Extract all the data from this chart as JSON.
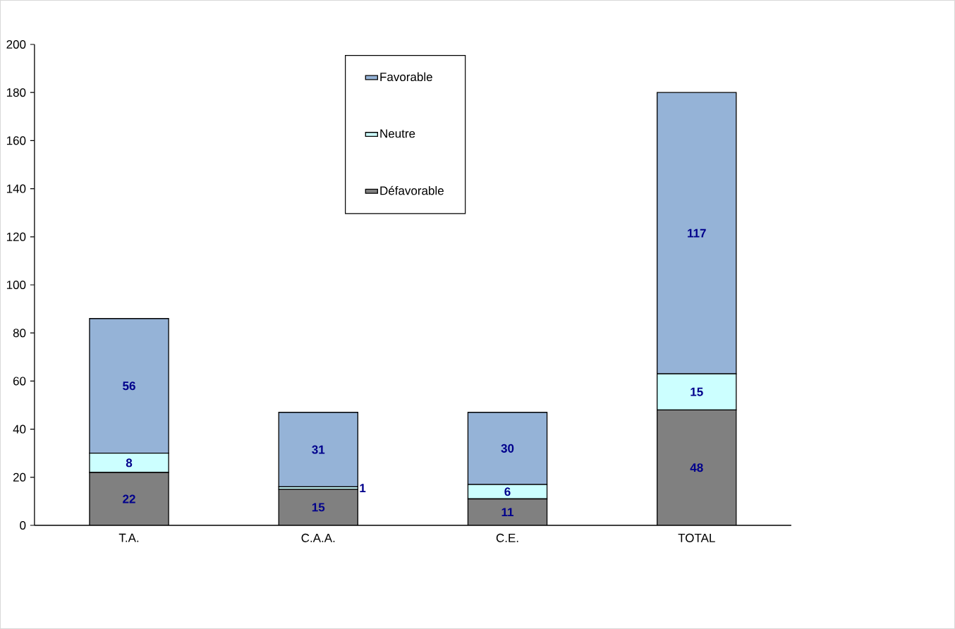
{
  "chart_data": {
    "type": "bar",
    "stacked": true,
    "categories": [
      "T.A.",
      "C.A.A.",
      "C.E.",
      "TOTAL"
    ],
    "series": [
      {
        "name": "Défavorable",
        "color": "#808080",
        "values": [
          22,
          15,
          11,
          48
        ]
      },
      {
        "name": "Neutre",
        "color": "#ccffff",
        "values": [
          8,
          1,
          6,
          15
        ]
      },
      {
        "name": "Favorable",
        "color": "#95b3d7",
        "values": [
          56,
          31,
          30,
          117
        ]
      }
    ],
    "ylim": [
      0,
      200
    ],
    "yticks": [
      0,
      20,
      40,
      60,
      80,
      100,
      120,
      140,
      160,
      180,
      200
    ],
    "data_labels": true,
    "legend": "top",
    "grid": false
  }
}
